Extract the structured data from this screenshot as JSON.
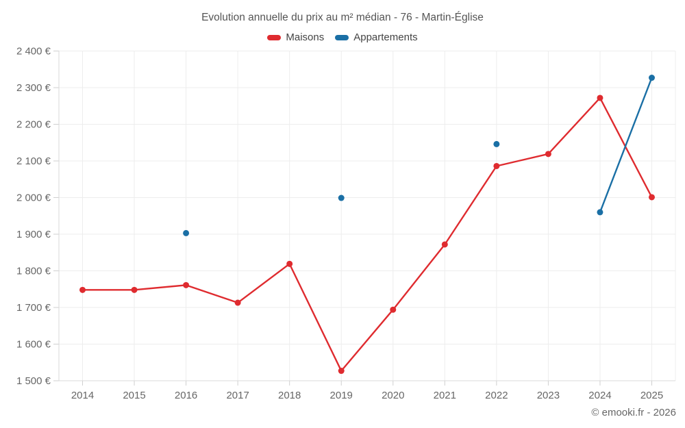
{
  "chart_data": {
    "type": "line",
    "title": "Evolution annuelle du prix au m² médian - 76 - Martin-Église",
    "categories": [
      "2014",
      "2015",
      "2016",
      "2017",
      "2018",
      "2019",
      "2020",
      "2021",
      "2022",
      "2023",
      "2024",
      "2025"
    ],
    "series": [
      {
        "name": "Maisons",
        "color": "#df2b2f",
        "values": [
          1748,
          1748,
          1761,
          1713,
          1819,
          1527,
          1694,
          1872,
          2086,
          2119,
          2272,
          2001
        ]
      },
      {
        "name": "Appartements",
        "color": "#1a6fa5",
        "values": [
          null,
          null,
          1903,
          null,
          null,
          1999,
          null,
          null,
          2146,
          null,
          1960,
          2327
        ]
      }
    ],
    "xlabel": "",
    "ylabel": "",
    "ylim": [
      1500,
      2400
    ],
    "ytick_step": 100,
    "ytick_labels": [
      "1 500 €",
      "1 600 €",
      "1 700 €",
      "1 800 €",
      "1 900 €",
      "2 000 €",
      "2 100 €",
      "2 200 €",
      "2 300 €",
      "2 400 €"
    ],
    "grid": true,
    "legend_position": "top"
  },
  "footer": {
    "credit": "© emooki.fr - 2026"
  },
  "colors": {
    "maisons": "#df2b2f",
    "appartements": "#1a6fa5"
  }
}
